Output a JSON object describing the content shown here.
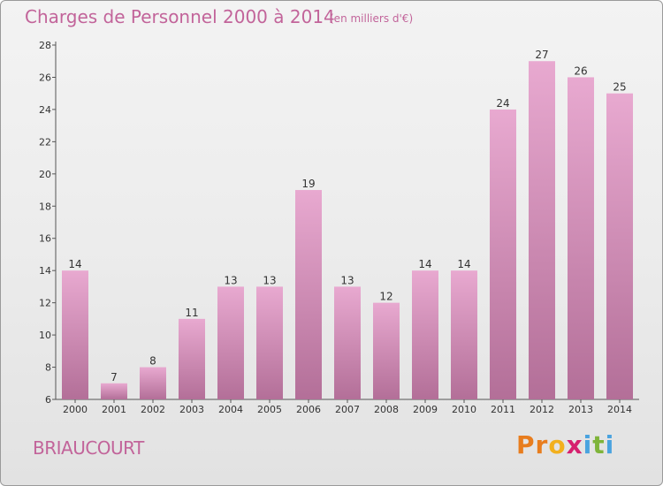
{
  "header": {
    "title": "Charges de Personnel 2000 à 2014",
    "subtitle": "(en milliers d'€)"
  },
  "footer": {
    "commune": "BRIAUCOURT",
    "logo_letters": [
      "P",
      "r",
      "o",
      "x",
      "i",
      "t",
      "i"
    ]
  },
  "colors": {
    "title": "#c2649a",
    "bar_top": "#e8a9d0",
    "bar_bottom": "#b36f98",
    "logo": [
      "#e87d1e",
      "#e87d1e",
      "#f2b01e",
      "#d6206e",
      "#4aa3df",
      "#7fb43a",
      "#4aa3df"
    ]
  },
  "chart_data": {
    "type": "bar",
    "title": "Charges de Personnel 2000 à 2014",
    "subtitle": "(en milliers d'€)",
    "categories": [
      "2000",
      "2001",
      "2002",
      "2003",
      "2004",
      "2005",
      "2006",
      "2007",
      "2008",
      "2009",
      "2010",
      "2011",
      "2012",
      "2013",
      "2014"
    ],
    "values": [
      14,
      7,
      8,
      11,
      13,
      13,
      19,
      13,
      12,
      14,
      14,
      24,
      27,
      26,
      25
    ],
    "ylim": [
      6,
      28
    ],
    "yticks": [
      6,
      8,
      10,
      12,
      14,
      16,
      18,
      20,
      22,
      24,
      26,
      28
    ],
    "grid": false,
    "data_labels": true
  }
}
